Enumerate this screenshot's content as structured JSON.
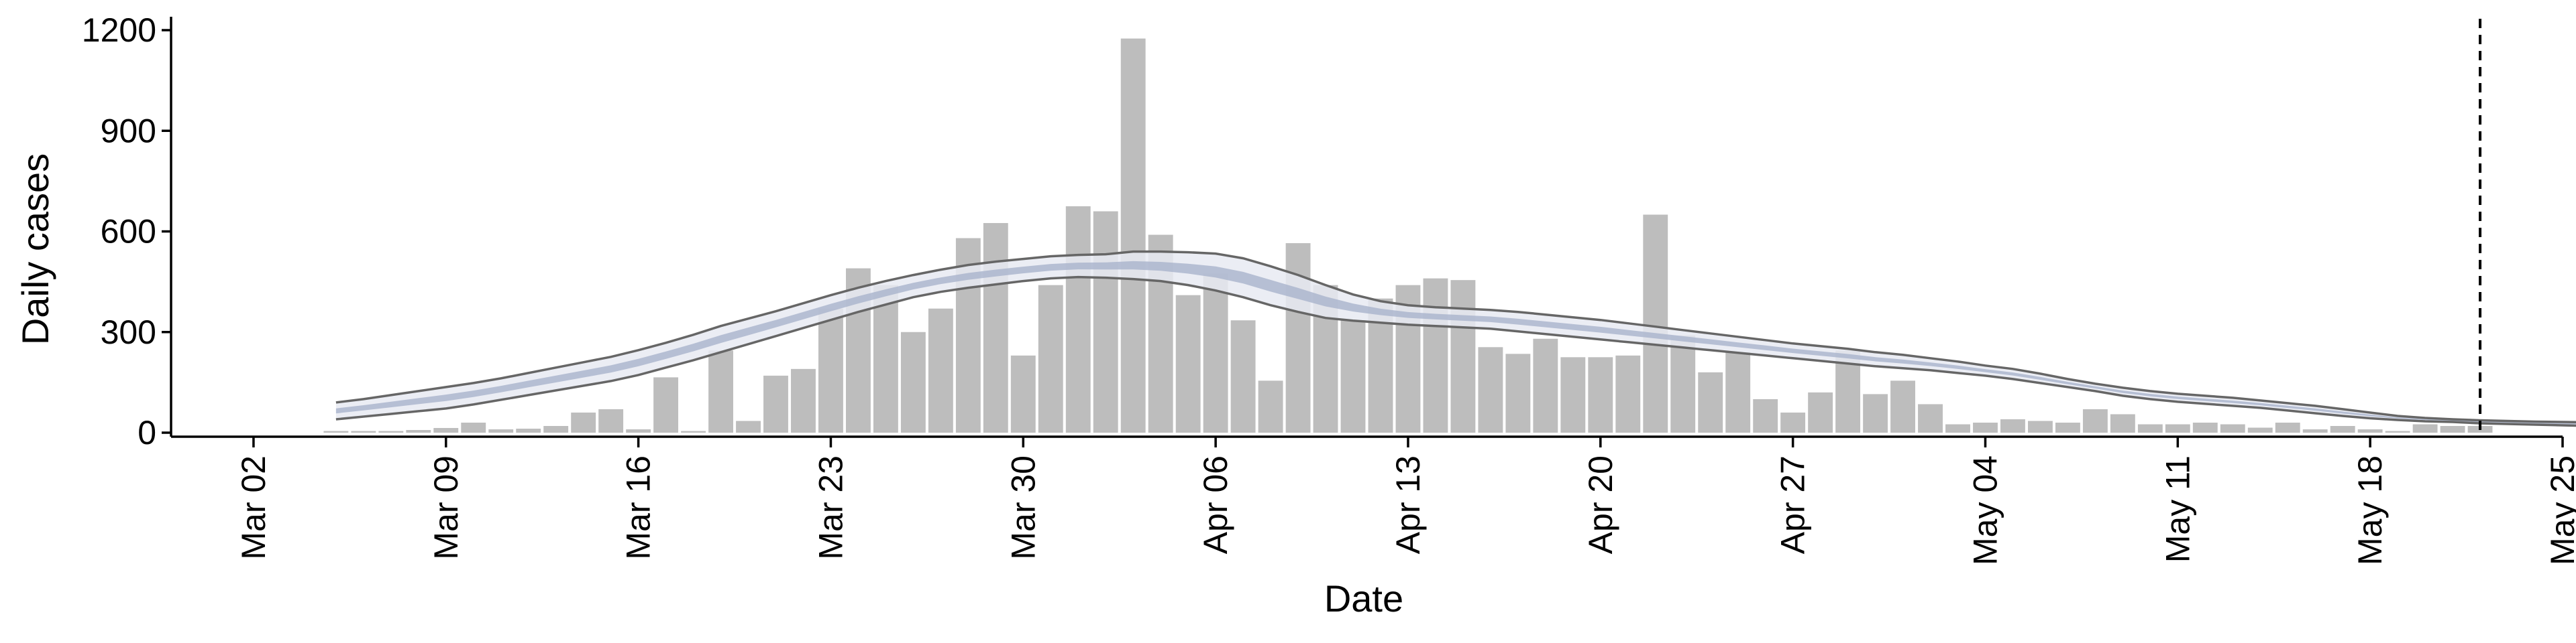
{
  "chart_data": {
    "type": "bar",
    "xlabel": "Date",
    "ylabel": "Daily cases",
    "x_axis_type": "date",
    "xlim": [
      "2020-02-28",
      "2020-05-25"
    ],
    "ylim": [
      0,
      1230
    ],
    "yticks": [
      0,
      300,
      600,
      900,
      1200
    ],
    "xticks": [
      {
        "date": "2020-03-02",
        "label": "Mar 02"
      },
      {
        "date": "2020-03-09",
        "label": "Mar 09"
      },
      {
        "date": "2020-03-16",
        "label": "Mar 16"
      },
      {
        "date": "2020-03-23",
        "label": "Mar 23"
      },
      {
        "date": "2020-03-30",
        "label": "Mar 30"
      },
      {
        "date": "2020-04-06",
        "label": "Apr 06"
      },
      {
        "date": "2020-04-13",
        "label": "Apr 13"
      },
      {
        "date": "2020-04-20",
        "label": "Apr 20"
      },
      {
        "date": "2020-04-27",
        "label": "Apr 27"
      },
      {
        "date": "2020-05-04",
        "label": "May 04"
      },
      {
        "date": "2020-05-11",
        "label": "May 11"
      },
      {
        "date": "2020-05-18",
        "label": "May 18"
      },
      {
        "date": "2020-05-25",
        "label": "May 25"
      }
    ],
    "grid": false,
    "legend": "none",
    "vline": {
      "date": "2020-05-22",
      "style": "dashed"
    },
    "bars": {
      "start_date": "2020-03-05",
      "values": [
        5,
        5,
        5,
        8,
        14,
        30,
        10,
        12,
        20,
        60,
        70,
        10,
        165,
        5,
        245,
        35,
        170,
        190,
        370,
        490,
        440,
        300,
        370,
        580,
        625,
        230,
        440,
        675,
        660,
        1175,
        590,
        410,
        475,
        335,
        155,
        565,
        440,
        335,
        400,
        440,
        460,
        455,
        255,
        235,
        280,
        225,
        225,
        230,
        650,
        290,
        180,
        240,
        100,
        60,
        120,
        245,
        115,
        155,
        85,
        25,
        30,
        40,
        35,
        30,
        70,
        55,
        25,
        25,
        30,
        25,
        15,
        30,
        10,
        20,
        10,
        5,
        25,
        20,
        20
      ],
      "color": "#bdbdbd"
    },
    "band": {
      "start_date": "2020-03-05",
      "lower": [
        40,
        48,
        56,
        64,
        72,
        84,
        98,
        112,
        126,
        140,
        154,
        172,
        194,
        216,
        240,
        264,
        288,
        312,
        336,
        360,
        382,
        404,
        420,
        432,
        442,
        452,
        460,
        464,
        462,
        458,
        452,
        440,
        424,
        404,
        380,
        360,
        342,
        334,
        328,
        322,
        318,
        314,
        310,
        302,
        294,
        286,
        278,
        270,
        262,
        254,
        246,
        238,
        230,
        222,
        214,
        206,
        198,
        192,
        186,
        178,
        170,
        160,
        148,
        136,
        124,
        110,
        100,
        92,
        86,
        80,
        74,
        66,
        58,
        50,
        43,
        38,
        34,
        32,
        28,
        26,
        24,
        22,
        20,
        18,
        16,
        14,
        13,
        12,
        12,
        11,
        10
      ],
      "upper": [
        90,
        100,
        112,
        124,
        136,
        148,
        162,
        178,
        194,
        210,
        226,
        246,
        268,
        292,
        318,
        340,
        362,
        386,
        410,
        432,
        452,
        470,
        486,
        500,
        510,
        518,
        526,
        530,
        532,
        540,
        540,
        538,
        534,
        520,
        496,
        470,
        440,
        412,
        392,
        380,
        374,
        370,
        366,
        360,
        352,
        344,
        336,
        326,
        316,
        306,
        296,
        286,
        276,
        266,
        258,
        250,
        240,
        232,
        222,
        212,
        200,
        190,
        176,
        160,
        146,
        134,
        124,
        116,
        110,
        104,
        96,
        88,
        80,
        70,
        60,
        50,
        44,
        40,
        37,
        35,
        33,
        32,
        31,
        30,
        29,
        28,
        27,
        26,
        25,
        24,
        23
      ],
      "fill_outer": "#e7eaf2",
      "fill_inner": "#a9b3cc",
      "line_color": "#666666"
    }
  }
}
